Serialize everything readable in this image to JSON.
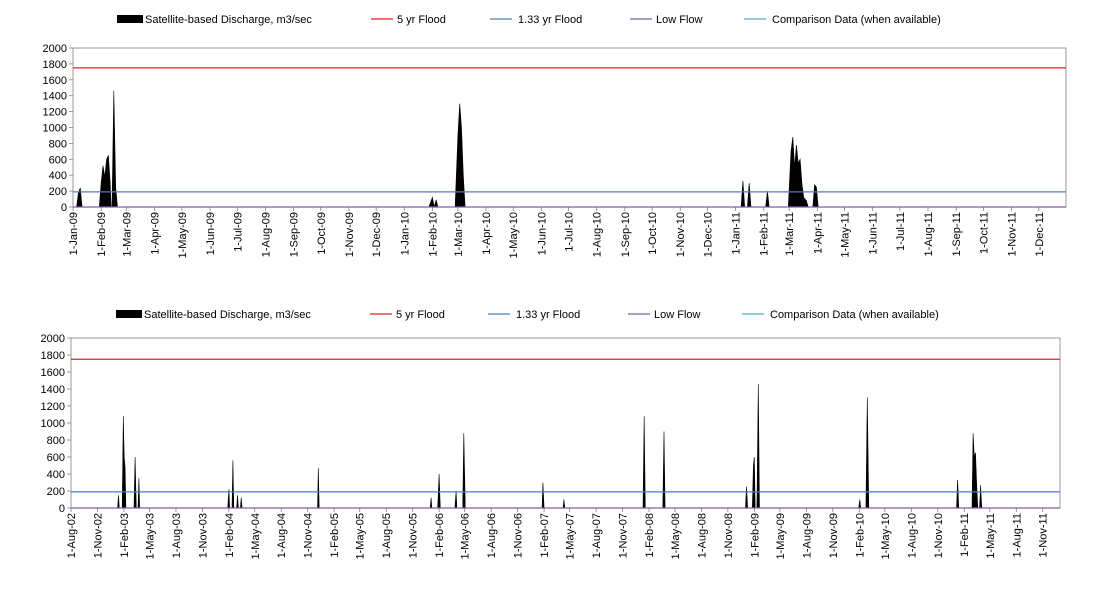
{
  "chart_data": [
    {
      "type": "area",
      "title": "",
      "xlabel": "",
      "ylabel": "",
      "ylim": [
        0,
        2000
      ],
      "yticks": [
        0,
        200,
        400,
        600,
        800,
        1000,
        1200,
        1400,
        1600,
        1800,
        2000
      ],
      "xlim": [
        "2009-01-01",
        "2011-12-31"
      ],
      "x_tick_labels": [
        "1-Jan-09",
        "1-Feb-09",
        "1-Mar-09",
        "1-Apr-09",
        "1-May-09",
        "1-Jun-09",
        "1-Jul-09",
        "1-Aug-09",
        "1-Sep-09",
        "1-Oct-09",
        "1-Nov-09",
        "1-Dec-09",
        "1-Jan-10",
        "1-Feb-10",
        "1-Mar-10",
        "1-Apr-10",
        "1-May-10",
        "1-Jun-10",
        "1-Jul-10",
        "1-Aug-10",
        "1-Sep-10",
        "1-Oct-10",
        "1-Nov-10",
        "1-Dec-10",
        "1-Jan-11",
        "1-Feb-11",
        "1-Mar-11",
        "1-Apr-11",
        "1-May-11",
        "1-Jun-11",
        "1-Jul-11",
        "1-Aug-11",
        "1-Sep-11",
        "1-Oct-11",
        "1-Nov-11",
        "1-Dec-11"
      ],
      "legend": [
        {
          "label": "Satellite-based Discharge, m3/sec",
          "color": "#000000",
          "kind": "area"
        },
        {
          "label": "5 yr Flood",
          "color": "#e02020",
          "kind": "line"
        },
        {
          "label": "1.33 yr Flood",
          "color": "#4a7ebb",
          "kind": "line"
        },
        {
          "label": "Low Flow",
          "color": "#7d5fa6",
          "kind": "line"
        },
        {
          "label": "Comparison Data (when available)",
          "color": "#4bacc6",
          "kind": "line"
        }
      ],
      "legend_position": "top",
      "grid": false,
      "reference_lines": [
        {
          "name": "5 yr Flood",
          "value": 1750,
          "color": "#e02020"
        },
        {
          "name": "1.33 yr Flood",
          "value": 190,
          "color": "#4a7ebb"
        },
        {
          "name": "Low Flow",
          "value": 0,
          "color": "#7d5fa6"
        }
      ],
      "series": [
        {
          "name": "Satellite-based Discharge, m3/sec",
          "points": [
            [
              "2009-01-01",
              0
            ],
            [
              "2009-01-05",
              0
            ],
            [
              "2009-01-07",
              180
            ],
            [
              "2009-01-09",
              240
            ],
            [
              "2009-01-11",
              0
            ],
            [
              "2009-01-30",
              0
            ],
            [
              "2009-02-01",
              300
            ],
            [
              "2009-02-03",
              520
            ],
            [
              "2009-02-05",
              380
            ],
            [
              "2009-02-07",
              600
            ],
            [
              "2009-02-09",
              650
            ],
            [
              "2009-02-11",
              300
            ],
            [
              "2009-02-12",
              0
            ],
            [
              "2009-02-13",
              0
            ],
            [
              "2009-02-15",
              1460
            ],
            [
              "2009-02-17",
              250
            ],
            [
              "2009-02-19",
              0
            ],
            [
              "2010-01-28",
              0
            ],
            [
              "2010-02-01",
              120
            ],
            [
              "2010-02-03",
              0
            ],
            [
              "2010-02-05",
              90
            ],
            [
              "2010-02-07",
              0
            ],
            [
              "2010-02-26",
              0
            ],
            [
              "2010-03-01",
              900
            ],
            [
              "2010-03-03",
              1300
            ],
            [
              "2010-03-05",
              1000
            ],
            [
              "2010-03-07",
              400
            ],
            [
              "2010-03-09",
              0
            ],
            [
              "2011-01-07",
              0
            ],
            [
              "2011-01-09",
              330
            ],
            [
              "2011-01-11",
              0
            ],
            [
              "2011-01-14",
              0
            ],
            [
              "2011-01-16",
              300
            ],
            [
              "2011-01-18",
              0
            ],
            [
              "2011-02-03",
              0
            ],
            [
              "2011-02-05",
              200
            ],
            [
              "2011-02-07",
              0
            ],
            [
              "2011-02-28",
              0
            ],
            [
              "2011-03-03",
              700
            ],
            [
              "2011-03-05",
              880
            ],
            [
              "2011-03-07",
              500
            ],
            [
              "2011-03-09",
              780
            ],
            [
              "2011-03-11",
              550
            ],
            [
              "2011-03-13",
              600
            ],
            [
              "2011-03-15",
              300
            ],
            [
              "2011-03-17",
              120
            ],
            [
              "2011-03-20",
              80
            ],
            [
              "2011-03-22",
              0
            ],
            [
              "2011-03-27",
              0
            ],
            [
              "2011-03-29",
              280
            ],
            [
              "2011-03-31",
              250
            ],
            [
              "2011-04-02",
              0
            ]
          ]
        },
        {
          "name": "Comparison Data (when available)",
          "points": []
        }
      ]
    },
    {
      "type": "area",
      "title": "",
      "xlabel": "",
      "ylabel": "",
      "ylim": [
        0,
        2000
      ],
      "yticks": [
        0,
        200,
        400,
        600,
        800,
        1000,
        1200,
        1400,
        1600,
        1800,
        2000
      ],
      "xlim": [
        "2002-08-01",
        "2011-12-31"
      ],
      "x_tick_labels": [
        "1-Aug-02",
        "1-Nov-02",
        "1-Feb-03",
        "1-May-03",
        "1-Aug-03",
        "1-Nov-03",
        "1-Feb-04",
        "1-May-04",
        "1-Aug-04",
        "1-Nov-04",
        "1-Feb-05",
        "1-May-05",
        "1-Aug-05",
        "1-Nov-05",
        "1-Feb-06",
        "1-May-06",
        "1-Aug-06",
        "1-Nov-06",
        "1-Feb-07",
        "1-May-07",
        "1-Aug-07",
        "1-Nov-07",
        "1-Feb-08",
        "1-May-08",
        "1-Aug-08",
        "1-Nov-08",
        "1-Feb-09",
        "1-May-09",
        "1-Aug-09",
        "1-Nov-09",
        "1-Feb-10",
        "1-May-10",
        "1-Aug-10",
        "1-Nov-10",
        "1-Feb-11",
        "1-May-11",
        "1-Aug-11",
        "1-Nov-11"
      ],
      "legend": [
        {
          "label": "Satellite-based Discharge, m3/sec",
          "color": "#000000",
          "kind": "area"
        },
        {
          "label": "5 yr Flood",
          "color": "#e02020",
          "kind": "line"
        },
        {
          "label": "1.33 yr Flood",
          "color": "#4a7ebb",
          "kind": "line"
        },
        {
          "label": "Low Flow",
          "color": "#7d5fa6",
          "kind": "line"
        },
        {
          "label": "Comparison Data (when available)",
          "color": "#4bacc6",
          "kind": "line"
        }
      ],
      "legend_position": "top",
      "grid": false,
      "reference_lines": [
        {
          "name": "5 yr Flood",
          "value": 1750,
          "color": "#e02020"
        },
        {
          "name": "1.33 yr Flood",
          "value": 190,
          "color": "#4a7ebb"
        },
        {
          "name": "Low Flow",
          "value": 0,
          "color": "#7d5fa6"
        }
      ],
      "series": [
        {
          "name": "Satellite-based Discharge, m3/sec",
          "points": [
            [
              "2002-08-01",
              0
            ],
            [
              "2003-01-10",
              0
            ],
            [
              "2003-01-13",
              150
            ],
            [
              "2003-01-16",
              0
            ],
            [
              "2003-01-26",
              0
            ],
            [
              "2003-01-30",
              1080
            ],
            [
              "2003-02-02",
              600
            ],
            [
              "2003-02-05",
              480
            ],
            [
              "2003-02-08",
              0
            ],
            [
              "2003-03-08",
              0
            ],
            [
              "2003-03-12",
              600
            ],
            [
              "2003-03-16",
              0
            ],
            [
              "2003-03-22",
              0
            ],
            [
              "2003-03-25",
              350
            ],
            [
              "2003-03-28",
              0
            ],
            [
              "2004-01-28",
              0
            ],
            [
              "2004-02-01",
              220
            ],
            [
              "2004-02-04",
              0
            ],
            [
              "2004-02-12",
              0
            ],
            [
              "2004-02-15",
              560
            ],
            [
              "2004-02-18",
              0
            ],
            [
              "2004-02-28",
              0
            ],
            [
              "2004-03-02",
              150
            ],
            [
              "2004-03-05",
              0
            ],
            [
              "2004-03-12",
              0
            ],
            [
              "2004-03-15",
              120
            ],
            [
              "2004-03-18",
              0
            ],
            [
              "2004-12-05",
              0
            ],
            [
              "2004-12-08",
              470
            ],
            [
              "2004-12-11",
              0
            ],
            [
              "2006-01-01",
              0
            ],
            [
              "2006-01-04",
              120
            ],
            [
              "2006-01-07",
              0
            ],
            [
              "2006-01-27",
              0
            ],
            [
              "2006-02-01",
              400
            ],
            [
              "2006-02-05",
              0
            ],
            [
              "2006-03-28",
              0
            ],
            [
              "2006-04-01",
              200
            ],
            [
              "2006-04-04",
              0
            ],
            [
              "2006-04-24",
              0
            ],
            [
              "2006-04-28",
              880
            ],
            [
              "2006-05-03",
              0
            ],
            [
              "2007-01-25",
              0
            ],
            [
              "2007-01-28",
              300
            ],
            [
              "2007-02-01",
              0
            ],
            [
              "2007-04-08",
              0
            ],
            [
              "2007-04-11",
              100
            ],
            [
              "2007-04-14",
              0
            ],
            [
              "2008-01-11",
              0
            ],
            [
              "2008-01-15",
              1080
            ],
            [
              "2008-01-19",
              0
            ],
            [
              "2008-03-20",
              0
            ],
            [
              "2008-03-24",
              900
            ],
            [
              "2008-03-28",
              0
            ],
            [
              "2009-01-01",
              0
            ],
            [
              "2009-01-05",
              250
            ],
            [
              "2009-01-09",
              0
            ],
            [
              "2009-01-25",
              0
            ],
            [
              "2009-01-29",
              500
            ],
            [
              "2009-02-01",
              600
            ],
            [
              "2009-02-04",
              0
            ],
            [
              "2009-02-10",
              0
            ],
            [
              "2009-02-15",
              1460
            ],
            [
              "2009-02-19",
              0
            ],
            [
              "2010-01-30",
              0
            ],
            [
              "2010-02-03",
              100
            ],
            [
              "2010-02-06",
              0
            ],
            [
              "2010-02-24",
              0
            ],
            [
              "2010-03-01",
              1300
            ],
            [
              "2010-03-06",
              0
            ],
            [
              "2011-01-05",
              0
            ],
            [
              "2011-01-09",
              330
            ],
            [
              "2011-01-13",
              0
            ],
            [
              "2011-02-28",
              0
            ],
            [
              "2011-03-04",
              880
            ],
            [
              "2011-03-08",
              600
            ],
            [
              "2011-03-12",
              650
            ],
            [
              "2011-03-16",
              300
            ],
            [
              "2011-03-20",
              0
            ],
            [
              "2011-03-26",
              0
            ],
            [
              "2011-03-30",
              270
            ],
            [
              "2011-04-03",
              0
            ]
          ]
        },
        {
          "name": "Comparison Data (when available)",
          "points": []
        }
      ]
    }
  ]
}
